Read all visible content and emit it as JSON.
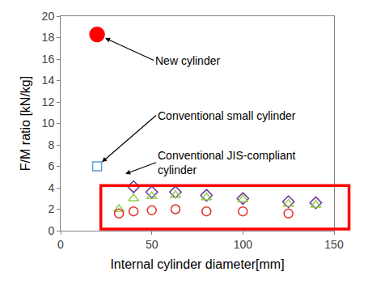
{
  "chart_data": {
    "type": "scatter",
    "xlabel": "Internal cylinder diameter[mm]",
    "ylabel": "F/M ratio [kN/kg]",
    "xlim": [
      0,
      150
    ],
    "xticks": [
      0,
      50,
      100,
      150
    ],
    "ylim": [
      0,
      20
    ],
    "yticks": [
      0,
      2,
      4,
      6,
      8,
      10,
      12,
      14,
      16,
      18,
      20
    ],
    "grid": false,
    "series": [
      {
        "color": "#ff0000",
        "marker": "circle",
        "x": [
          20
        ],
        "values": [
          18.3
        ]
      },
      {
        "color": "#5b9bd5",
        "marker": "square-open",
        "x": [
          20
        ],
        "values": [
          6.0
        ]
      },
      {
        "color": "#7030a0",
        "marker": "diamond-open",
        "x": [
          40,
          50,
          63,
          80,
          100,
          125,
          140
        ],
        "values": [
          4.1,
          3.6,
          3.6,
          3.3,
          3.0,
          2.7,
          2.6
        ]
      },
      {
        "color": "#92d050",
        "marker": "triangle-up-open",
        "x": [
          32,
          40,
          50,
          63,
          80,
          100,
          125,
          140
        ],
        "values": [
          2.0,
          3.0,
          3.2,
          3.3,
          3.1,
          2.9,
          2.5,
          2.4
        ]
      },
      {
        "color": "#e0302a",
        "marker": "circle-open",
        "x": [
          32,
          40,
          50,
          63,
          80,
          100,
          125
        ],
        "values": [
          1.6,
          1.8,
          1.9,
          2.0,
          1.8,
          1.8,
          1.6
        ]
      }
    ],
    "annotations": [
      {
        "text": "New cylinder"
      },
      {
        "text": "Conventional small cylinder"
      },
      {
        "text": "Conventional JIS-compliant cylinder"
      }
    ]
  }
}
